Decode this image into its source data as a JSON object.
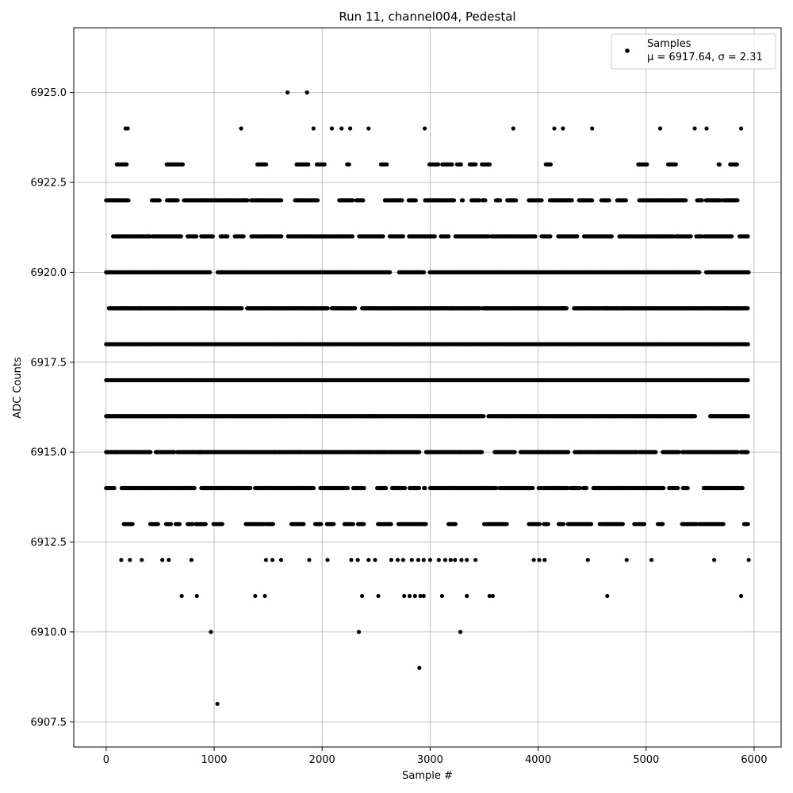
{
  "chart_data": {
    "type": "scatter",
    "title": "Run 11, channel004, Pedestal",
    "xlabel": "Sample #",
    "ylabel": "ADC Counts",
    "xlim": [
      -300,
      6250
    ],
    "ylim": [
      6906.8,
      6926.8
    ],
    "x_ticks": [
      0,
      1000,
      2000,
      3000,
      4000,
      5000,
      6000
    ],
    "x_tick_labels": [
      "0",
      "1000",
      "2000",
      "3000",
      "4000",
      "5000",
      "6000"
    ],
    "y_ticks": [
      6907.5,
      6910.0,
      6912.5,
      6915.0,
      6917.5,
      6920.0,
      6922.5,
      6925.0
    ],
    "y_tick_labels": [
      "6907.5",
      "6910.0",
      "6912.5",
      "6915.0",
      "6917.5",
      "6920.0",
      "6922.5",
      "6925.0"
    ],
    "grid": true,
    "legend": {
      "position": "top-right",
      "entries": [
        {
          "label": "Samples",
          "sublabel": "μ = 6917.64, σ = 2.31",
          "color": "#000000",
          "marker": "circle"
        }
      ]
    },
    "series": [
      {
        "name": "Samples",
        "color": "#000000",
        "n_samples": 5950,
        "dense_levels": [
          6913,
          6914,
          6915,
          6916,
          6917,
          6918,
          6919,
          6920,
          6921,
          6922,
          6923
        ],
        "level_fill": {
          "6913": 0.45,
          "6914": 0.8,
          "6915": 0.92,
          "6916": 0.97,
          "6917": 1.0,
          "6918": 1.0,
          "6919": 0.98,
          "6920": 0.95,
          "6921": 0.82,
          "6922": 0.55,
          "6923": 0.22
        },
        "points": [
          {
            "x": 1680,
            "y": 6925
          },
          {
            "x": 1860,
            "y": 6925
          },
          {
            "x": 180,
            "y": 6924
          },
          {
            "x": 200,
            "y": 6924
          },
          {
            "x": 1250,
            "y": 6924
          },
          {
            "x": 1920,
            "y": 6924
          },
          {
            "x": 2090,
            "y": 6924
          },
          {
            "x": 2180,
            "y": 6924
          },
          {
            "x": 2260,
            "y": 6924
          },
          {
            "x": 2430,
            "y": 6924
          },
          {
            "x": 2950,
            "y": 6924
          },
          {
            "x": 3770,
            "y": 6924
          },
          {
            "x": 4150,
            "y": 6924
          },
          {
            "x": 4230,
            "y": 6924
          },
          {
            "x": 4500,
            "y": 6924
          },
          {
            "x": 5130,
            "y": 6924
          },
          {
            "x": 5450,
            "y": 6924
          },
          {
            "x": 5560,
            "y": 6924
          },
          {
            "x": 5880,
            "y": 6924
          },
          {
            "x": 140,
            "y": 6912
          },
          {
            "x": 220,
            "y": 6912
          },
          {
            "x": 330,
            "y": 6912
          },
          {
            "x": 520,
            "y": 6912
          },
          {
            "x": 580,
            "y": 6912
          },
          {
            "x": 790,
            "y": 6912
          },
          {
            "x": 1480,
            "y": 6912
          },
          {
            "x": 1540,
            "y": 6912
          },
          {
            "x": 1620,
            "y": 6912
          },
          {
            "x": 1880,
            "y": 6912
          },
          {
            "x": 2050,
            "y": 6912
          },
          {
            "x": 2270,
            "y": 6912
          },
          {
            "x": 2330,
            "y": 6912
          },
          {
            "x": 2430,
            "y": 6912
          },
          {
            "x": 2490,
            "y": 6912
          },
          {
            "x": 2640,
            "y": 6912
          },
          {
            "x": 2700,
            "y": 6912
          },
          {
            "x": 2750,
            "y": 6912
          },
          {
            "x": 2830,
            "y": 6912
          },
          {
            "x": 2890,
            "y": 6912
          },
          {
            "x": 2940,
            "y": 6912
          },
          {
            "x": 3000,
            "y": 6912
          },
          {
            "x": 3080,
            "y": 6912
          },
          {
            "x": 3140,
            "y": 6912
          },
          {
            "x": 3190,
            "y": 6912
          },
          {
            "x": 3230,
            "y": 6912
          },
          {
            "x": 3290,
            "y": 6912
          },
          {
            "x": 3340,
            "y": 6912
          },
          {
            "x": 3420,
            "y": 6912
          },
          {
            "x": 3960,
            "y": 6912
          },
          {
            "x": 4010,
            "y": 6912
          },
          {
            "x": 4060,
            "y": 6912
          },
          {
            "x": 4460,
            "y": 6912
          },
          {
            "x": 4820,
            "y": 6912
          },
          {
            "x": 5050,
            "y": 6912
          },
          {
            "x": 5630,
            "y": 6912
          },
          {
            "x": 5950,
            "y": 6912
          },
          {
            "x": 700,
            "y": 6911
          },
          {
            "x": 840,
            "y": 6911
          },
          {
            "x": 1380,
            "y": 6911
          },
          {
            "x": 1470,
            "y": 6911
          },
          {
            "x": 2370,
            "y": 6911
          },
          {
            "x": 2520,
            "y": 6911
          },
          {
            "x": 2760,
            "y": 6911
          },
          {
            "x": 2810,
            "y": 6911
          },
          {
            "x": 2860,
            "y": 6911
          },
          {
            "x": 2910,
            "y": 6911
          },
          {
            "x": 2940,
            "y": 6911
          },
          {
            "x": 3110,
            "y": 6911
          },
          {
            "x": 3340,
            "y": 6911
          },
          {
            "x": 3550,
            "y": 6911
          },
          {
            "x": 3580,
            "y": 6911
          },
          {
            "x": 4640,
            "y": 6911
          },
          {
            "x": 5880,
            "y": 6911
          },
          {
            "x": 970,
            "y": 6910
          },
          {
            "x": 2340,
            "y": 6910
          },
          {
            "x": 3280,
            "y": 6910
          },
          {
            "x": 2900,
            "y": 6909
          },
          {
            "x": 1030,
            "y": 6908
          }
        ]
      }
    ]
  }
}
